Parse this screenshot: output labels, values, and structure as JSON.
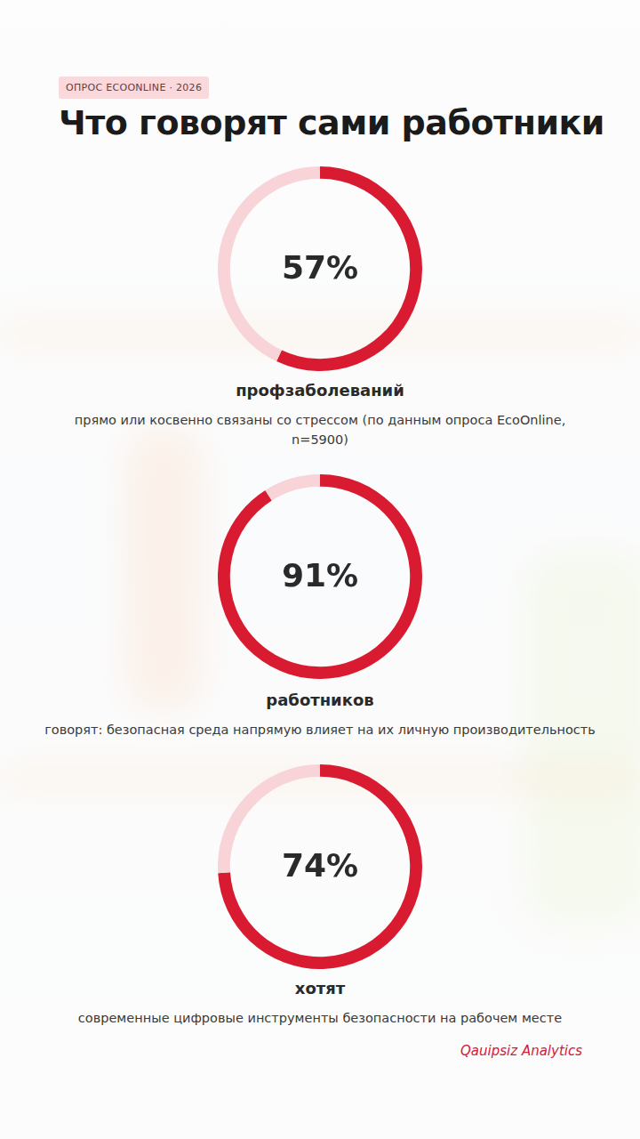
{
  "badge": "ОПРОС ECOONLINE · 2026",
  "title": "Что говорят сами работники",
  "source": "Qauipsiz Analytics",
  "chart_data": [
    {
      "type": "doughnut",
      "values": [
        57
      ],
      "value_labels": [
        "57%"
      ],
      "ylim": [
        0,
        100
      ],
      "color": "#d81b30",
      "data_labels": true,
      "title": "профзаболеваний",
      "subtitle": "прямо или косвенно связаны со стрессом (по данным опроса EcoOnline, n=5900)"
    },
    {
      "type": "doughnut",
      "values": [
        91
      ],
      "value_labels": [
        "91%"
      ],
      "ylim": [
        0,
        100
      ],
      "color": "#d81b30",
      "data_labels": true,
      "title": "работников",
      "subtitle": "говорят: безопасная среда напрямую влияет на их личную производительность"
    },
    {
      "type": "doughnut",
      "values": [
        74
      ],
      "value_labels": [
        "74%"
      ],
      "ylim": [
        0,
        100
      ],
      "color": "#d81b30",
      "data_labels": true,
      "title": "хотят",
      "subtitle": "современные цифровые инструменты безопасности на рабочем месте"
    }
  ]
}
